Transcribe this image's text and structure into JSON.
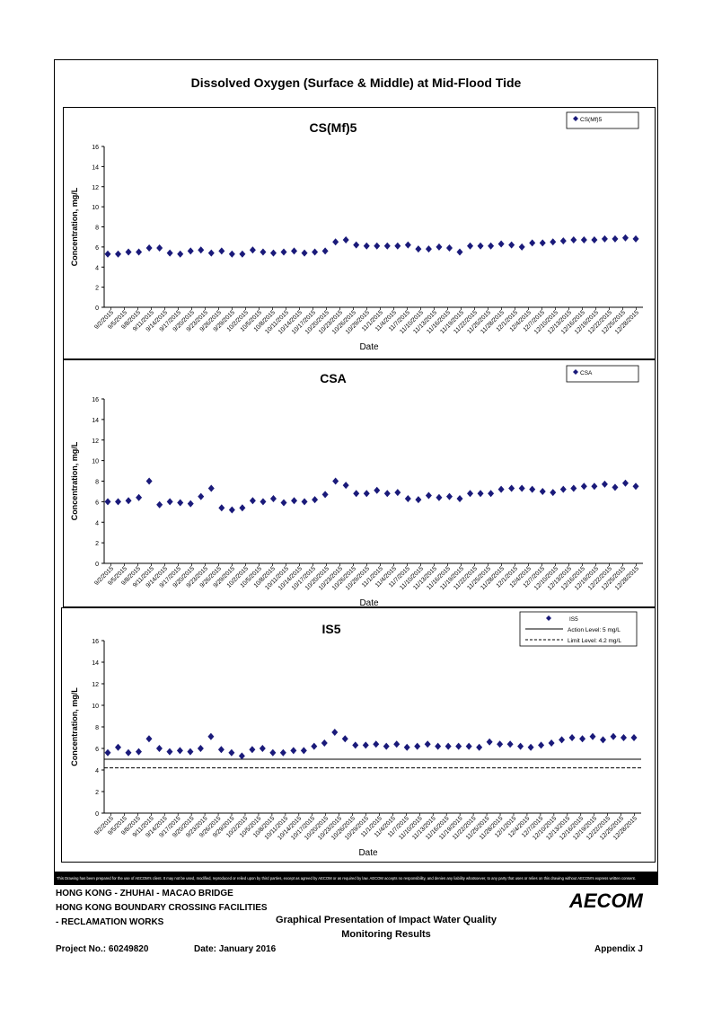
{
  "page_title": "Dissolved Oxygen (Surface & Middle) at Mid-Flood Tide",
  "footer": {
    "disclaimer": "This Drawing has been prepared for the use of AECOM's client. It may not be used, modified, reproduced or relied upon by third parties, except as agreed by AECOM or as required by law. AECOM accepts no responsibility, and denies any liability whatsoever, to any party that uses or relies on this drawing without AECOM's express written consent.",
    "line1": "HONG KONG - ZHUHAI - MACAO BRIDGE",
    "line2": "HONG KONG BOUNDARY CROSSING FACILITIES",
    "line3": "- RECLAMATION WORKS",
    "center_line1": "Graphical Presentation of Impact Water Quality",
    "center_line2": "Monitoring Results",
    "project_no": "Project No.: 60249820",
    "date": "Date: January 2016",
    "appendix": "Appendix J",
    "logo": "AECOM"
  },
  "chart_data": [
    {
      "type": "scatter",
      "title": "CS(Mf)5",
      "xlabel": "Date",
      "ylabel": "Concentration, mg/L",
      "ylim": [
        0,
        16
      ],
      "yticks": [
        0,
        2,
        4,
        6,
        8,
        10,
        12,
        14,
        16
      ],
      "legend": "top-right",
      "series": [
        {
          "name": "CS(Mf)5",
          "color": "#1a1a7a",
          "marker": "diamond",
          "values": [
            5.3,
            5.3,
            5.5,
            5.5,
            5.9,
            5.9,
            5.4,
            5.3,
            5.6,
            5.7,
            5.4,
            5.6,
            5.3,
            5.3,
            5.7,
            5.5,
            5.4,
            5.5,
            5.6,
            5.4,
            5.5,
            5.6,
            6.5,
            6.7,
            6.2,
            6.1,
            6.1,
            6.1,
            6.1,
            6.2,
            5.8,
            5.8,
            6.0,
            5.9,
            5.5,
            6.1,
            6.1,
            6.1,
            6.3,
            6.2,
            6.0,
            6.4,
            6.4,
            6.5,
            6.6,
            6.7,
            6.7,
            6.7,
            6.8,
            6.8,
            6.9,
            6.8
          ]
        }
      ],
      "reference_lines": []
    },
    {
      "type": "scatter",
      "title": "CSA",
      "xlabel": "Date",
      "ylabel": "Concentration, mg/L",
      "ylim": [
        0,
        16
      ],
      "yticks": [
        0,
        2,
        4,
        6,
        8,
        10,
        12,
        14,
        16
      ],
      "legend": "top-right",
      "series": [
        {
          "name": "CSA",
          "color": "#1a1a7a",
          "marker": "diamond",
          "values": [
            6.0,
            6.0,
            6.1,
            6.4,
            8.0,
            5.7,
            6.0,
            5.9,
            5.8,
            6.5,
            7.3,
            5.4,
            5.2,
            5.4,
            6.1,
            6.0,
            6.3,
            5.9,
            6.1,
            6.0,
            6.2,
            6.7,
            8.0,
            7.6,
            6.8,
            6.8,
            7.1,
            6.8,
            6.9,
            6.3,
            6.2,
            6.6,
            6.4,
            6.5,
            6.3,
            6.8,
            6.8,
            6.8,
            7.2,
            7.3,
            7.3,
            7.2,
            7.0,
            6.9,
            7.2,
            7.3,
            7.5,
            7.5,
            7.7,
            7.4,
            7.8,
            7.5
          ]
        }
      ],
      "reference_lines": []
    },
    {
      "type": "scatter",
      "title": "IS5",
      "xlabel": "Date",
      "ylabel": "Concentration, mg/L",
      "ylim": [
        0,
        16
      ],
      "yticks": [
        0,
        2,
        4,
        6,
        8,
        10,
        12,
        14,
        16
      ],
      "legend": "top-right",
      "series": [
        {
          "name": "IS5",
          "color": "#1a1a7a",
          "marker": "diamond",
          "values": [
            5.6,
            6.1,
            5.6,
            5.7,
            6.9,
            6.0,
            5.7,
            5.8,
            5.7,
            6.0,
            7.1,
            5.9,
            5.6,
            5.3,
            5.9,
            6.0,
            5.6,
            5.6,
            5.8,
            5.8,
            6.2,
            6.5,
            7.5,
            6.9,
            6.3,
            6.3,
            6.4,
            6.2,
            6.4,
            6.1,
            6.2,
            6.4,
            6.2,
            6.2,
            6.2,
            6.2,
            6.1,
            6.6,
            6.4,
            6.4,
            6.2,
            6.1,
            6.3,
            6.5,
            6.8,
            7.0,
            6.9,
            7.1,
            6.8,
            7.1,
            7.0,
            7.0
          ]
        }
      ],
      "reference_lines": [
        {
          "name": "Action Level: 5 mg/L",
          "value": 5,
          "style": "solid"
        },
        {
          "name": "Limit Level: 4.2 mg/L",
          "value": 4.2,
          "style": "dashed"
        }
      ]
    }
  ],
  "x_tick_labels": [
    "9/2/2015",
    "9/5/2015",
    "9/8/2015",
    "9/11/2015",
    "9/14/2015",
    "9/17/2015",
    "9/20/2015",
    "9/23/2015",
    "9/26/2015",
    "9/29/2015",
    "10/2/2015",
    "10/5/2015",
    "10/8/2015",
    "10/11/2015",
    "10/14/2015",
    "10/17/2015",
    "10/20/2015",
    "10/23/2015",
    "10/26/2015",
    "10/29/2015",
    "11/1/2015",
    "11/4/2015",
    "11/7/2015",
    "11/10/2015",
    "11/13/2015",
    "11/16/2015",
    "11/19/2015",
    "11/22/2015",
    "11/25/2015",
    "11/28/2015",
    "12/1/2015",
    "12/4/2015",
    "12/7/2015",
    "12/10/2015",
    "12/13/2015",
    "12/16/2015",
    "12/19/2015",
    "12/22/2015",
    "12/25/2015",
    "12/28/2015"
  ]
}
